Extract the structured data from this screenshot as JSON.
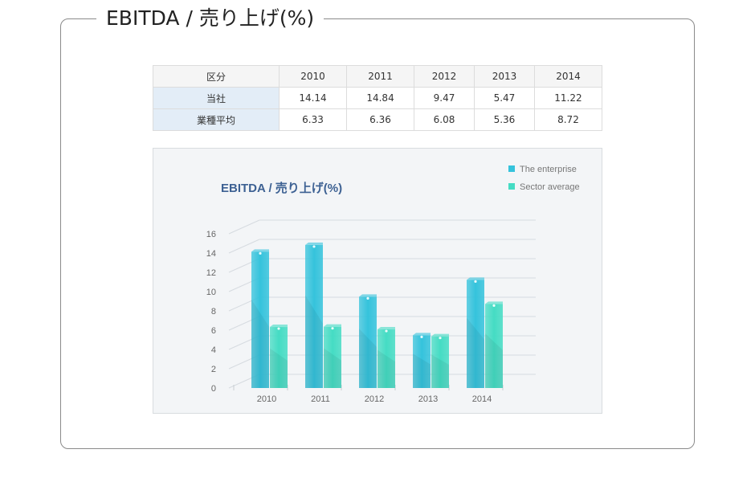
{
  "header": {
    "title": "EBITDA / 売り上げ(%)"
  },
  "table": {
    "columns": [
      "区分",
      "2010",
      "2011",
      "2012",
      "2013",
      "2014"
    ],
    "rows": [
      {
        "label": "当社",
        "values": [
          "14.14",
          "14.84",
          "9.47",
          "5.47",
          "11.22"
        ]
      },
      {
        "label": "業種平均",
        "values": [
          "6.33",
          "6.36",
          "6.08",
          "5.36",
          "8.72"
        ]
      }
    ]
  },
  "chart_data": {
    "type": "bar",
    "title": "EBITDA / 売り上げ(%)",
    "categories": [
      "2010",
      "2011",
      "2012",
      "2013",
      "2014"
    ],
    "series": [
      {
        "name": "The enterprise",
        "values": [
          14.14,
          14.84,
          9.47,
          5.47,
          11.22
        ],
        "color": "#35c3dc"
      },
      {
        "name": "Sector average",
        "values": [
          6.33,
          6.36,
          6.08,
          5.36,
          8.72
        ],
        "color": "#45dcc4"
      }
    ],
    "yticks": [
      "0",
      "2",
      "4",
      "6",
      "8",
      "10",
      "12",
      "14",
      "16"
    ],
    "ylim": [
      0,
      16
    ],
    "legend": "top-right",
    "grid": true
  }
}
